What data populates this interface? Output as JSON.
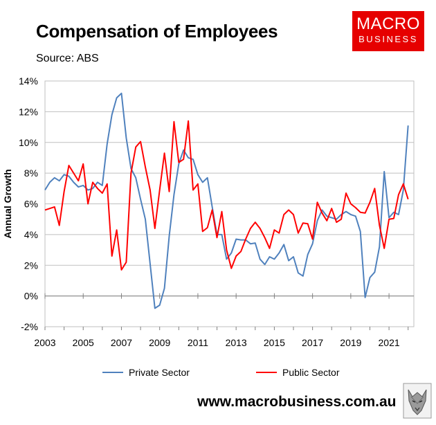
{
  "header": {
    "title": "Compensation of Employees",
    "source": "Source: ABS"
  },
  "logo": {
    "line1": "MACRO",
    "line2": "BUSINESS"
  },
  "footer": {
    "website": "www.macrobusiness.com.au",
    "mascot": "wolf-icon"
  },
  "chart_data": {
    "type": "line",
    "title": "Compensation of Employees",
    "ylabel": "Annual Growth",
    "xlabel": "",
    "ylim": [
      -2,
      14
    ],
    "yticks": [
      "-2%",
      "0%",
      "2%",
      "4%",
      "6%",
      "8%",
      "10%",
      "12%",
      "14%"
    ],
    "xlim": [
      2003,
      2022.3
    ],
    "xticks": [
      "2003",
      "2005",
      "2007",
      "2009",
      "2011",
      "2013",
      "2015",
      "2017",
      "2019",
      "2021"
    ],
    "legend_position": "bottom",
    "grid": "horizontal",
    "series": [
      {
        "name": "Private Sector",
        "color": "#4f81bd",
        "points": [
          [
            2003.0,
            6.9
          ],
          [
            2003.25,
            7.4
          ],
          [
            2003.5,
            7.7
          ],
          [
            2003.75,
            7.5
          ],
          [
            2004.0,
            7.9
          ],
          [
            2004.25,
            7.8
          ],
          [
            2004.5,
            7.4
          ],
          [
            2004.75,
            7.1
          ],
          [
            2005.0,
            7.2
          ],
          [
            2005.25,
            6.9
          ],
          [
            2005.5,
            7.0
          ],
          [
            2005.75,
            7.4
          ],
          [
            2006.0,
            7.2
          ],
          [
            2006.25,
            9.9
          ],
          [
            2006.5,
            11.8
          ],
          [
            2006.75,
            12.9
          ],
          [
            2007.0,
            13.2
          ],
          [
            2007.25,
            10.3
          ],
          [
            2007.5,
            8.3
          ],
          [
            2007.75,
            7.7
          ],
          [
            2008.0,
            6.3
          ],
          [
            2008.25,
            5.0
          ],
          [
            2008.5,
            2.1
          ],
          [
            2008.75,
            -0.8
          ],
          [
            2009.0,
            -0.6
          ],
          [
            2009.25,
            0.5
          ],
          [
            2009.5,
            3.9
          ],
          [
            2009.75,
            6.6
          ],
          [
            2010.0,
            8.6
          ],
          [
            2010.25,
            9.5
          ],
          [
            2010.5,
            9.0
          ],
          [
            2010.75,
            8.9
          ],
          [
            2011.0,
            7.9
          ],
          [
            2011.25,
            7.4
          ],
          [
            2011.5,
            7.7
          ],
          [
            2011.75,
            5.8
          ],
          [
            2012.0,
            4.0
          ],
          [
            2012.25,
            4.0
          ],
          [
            2012.5,
            2.4
          ],
          [
            2012.75,
            2.8
          ],
          [
            2013.0,
            3.7
          ],
          [
            2013.25,
            3.65
          ],
          [
            2013.5,
            3.65
          ],
          [
            2013.75,
            3.4
          ],
          [
            2014.0,
            3.45
          ],
          [
            2014.25,
            2.4
          ],
          [
            2014.5,
            2.05
          ],
          [
            2014.75,
            2.55
          ],
          [
            2015.0,
            2.4
          ],
          [
            2015.25,
            2.8
          ],
          [
            2015.5,
            3.35
          ],
          [
            2015.75,
            2.3
          ],
          [
            2016.0,
            2.55
          ],
          [
            2016.25,
            1.5
          ],
          [
            2016.5,
            1.3
          ],
          [
            2016.75,
            2.7
          ],
          [
            2017.0,
            3.4
          ],
          [
            2017.25,
            4.9
          ],
          [
            2017.5,
            5.6
          ],
          [
            2017.75,
            5.2
          ],
          [
            2018.0,
            5.1
          ],
          [
            2018.25,
            5.0
          ],
          [
            2018.5,
            5.3
          ],
          [
            2018.75,
            5.5
          ],
          [
            2019.0,
            5.3
          ],
          [
            2019.25,
            5.2
          ],
          [
            2019.5,
            4.2
          ],
          [
            2019.75,
            -0.1
          ],
          [
            2020.0,
            1.2
          ],
          [
            2020.25,
            1.55
          ],
          [
            2020.5,
            3.2
          ],
          [
            2020.75,
            8.1
          ],
          [
            2021.0,
            5.1
          ],
          [
            2021.25,
            5.45
          ],
          [
            2021.5,
            5.3
          ],
          [
            2021.75,
            6.9
          ],
          [
            2022.0,
            11.1
          ]
        ]
      },
      {
        "name": "Public Sector",
        "color": "#ff0000",
        "points": [
          [
            2003.0,
            5.6
          ],
          [
            2003.25,
            5.7
          ],
          [
            2003.5,
            5.8
          ],
          [
            2003.75,
            4.6
          ],
          [
            2004.0,
            6.8
          ],
          [
            2004.25,
            8.5
          ],
          [
            2004.5,
            8.0
          ],
          [
            2004.75,
            7.5
          ],
          [
            2005.0,
            8.6
          ],
          [
            2005.25,
            6.0
          ],
          [
            2005.5,
            7.4
          ],
          [
            2005.75,
            7.0
          ],
          [
            2006.0,
            6.7
          ],
          [
            2006.25,
            7.3
          ],
          [
            2006.5,
            2.6
          ],
          [
            2006.75,
            4.3
          ],
          [
            2007.0,
            1.7
          ],
          [
            2007.25,
            2.2
          ],
          [
            2007.5,
            8.0
          ],
          [
            2007.75,
            9.7
          ],
          [
            2008.0,
            10.05
          ],
          [
            2008.25,
            8.4
          ],
          [
            2008.5,
            6.9
          ],
          [
            2008.75,
            4.4
          ],
          [
            2009.0,
            6.9
          ],
          [
            2009.25,
            9.3
          ],
          [
            2009.5,
            6.8
          ],
          [
            2009.75,
            11.35
          ],
          [
            2010.0,
            8.7
          ],
          [
            2010.25,
            8.9
          ],
          [
            2010.5,
            11.4
          ],
          [
            2010.75,
            6.9
          ],
          [
            2011.0,
            7.3
          ],
          [
            2011.25,
            4.2
          ],
          [
            2011.5,
            4.45
          ],
          [
            2011.75,
            5.6
          ],
          [
            2012.0,
            3.8
          ],
          [
            2012.25,
            5.5
          ],
          [
            2012.5,
            3.0
          ],
          [
            2012.75,
            1.8
          ],
          [
            2013.0,
            2.6
          ],
          [
            2013.25,
            2.9
          ],
          [
            2013.5,
            3.7
          ],
          [
            2013.75,
            4.4
          ],
          [
            2014.0,
            4.8
          ],
          [
            2014.25,
            4.4
          ],
          [
            2014.5,
            3.8
          ],
          [
            2014.75,
            3.1
          ],
          [
            2015.0,
            4.3
          ],
          [
            2015.25,
            4.1
          ],
          [
            2015.5,
            5.3
          ],
          [
            2015.75,
            5.6
          ],
          [
            2016.0,
            5.3
          ],
          [
            2016.25,
            4.1
          ],
          [
            2016.5,
            4.75
          ],
          [
            2016.75,
            4.7
          ],
          [
            2017.0,
            3.7
          ],
          [
            2017.25,
            6.1
          ],
          [
            2017.5,
            5.4
          ],
          [
            2017.75,
            4.9
          ],
          [
            2018.0,
            5.7
          ],
          [
            2018.25,
            4.8
          ],
          [
            2018.5,
            5.0
          ],
          [
            2018.75,
            6.7
          ],
          [
            2019.0,
            6.0
          ],
          [
            2019.25,
            5.75
          ],
          [
            2019.5,
            5.45
          ],
          [
            2019.75,
            5.4
          ],
          [
            2020.0,
            6.1
          ],
          [
            2020.25,
            7.0
          ],
          [
            2020.5,
            4.6
          ],
          [
            2020.75,
            3.1
          ],
          [
            2021.0,
            5.0
          ],
          [
            2021.25,
            5.05
          ],
          [
            2021.5,
            6.6
          ],
          [
            2021.75,
            7.3
          ],
          [
            2022.0,
            6.3
          ]
        ]
      }
    ]
  }
}
